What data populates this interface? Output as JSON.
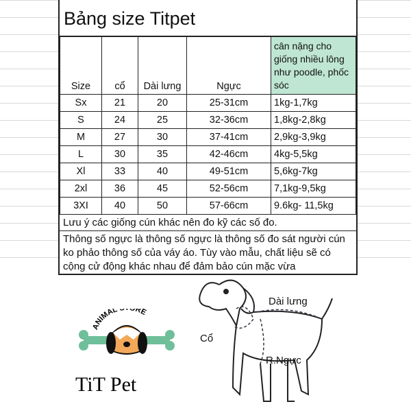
{
  "title": "Bảng size Titpet",
  "headers": [
    "Size",
    "cổ",
    "Dài lưng",
    "Ngực",
    "cân nặng cho giống nhiều lông như poodle, phốc sóc"
  ],
  "rows": [
    [
      "Sx",
      "21",
      "20",
      "25-31cm",
      "1kg-1,7kg"
    ],
    [
      "S",
      "24",
      "25",
      "32-36cm",
      "1,8kg-2,8kg"
    ],
    [
      "M",
      "27",
      "30",
      "37-41cm",
      "2,9kg-3,9kg"
    ],
    [
      "L",
      "30",
      "35",
      "42-46cm",
      "4kg-5,5kg"
    ],
    [
      "Xl",
      "33",
      "40",
      "49-51cm",
      "5,6kg-7kg"
    ],
    [
      "2xl",
      "36",
      "45",
      "52-56cm",
      "7,1kg-9,5kg"
    ],
    [
      "3XI",
      "40",
      "50",
      "57-66cm",
      "9.6kg- 11,5kg"
    ]
  ],
  "note": "Lưu ý các giống cún khác nên đo kỹ các số đo.",
  "paragraph": "Thông số ngực là thông số ngực là thông số đo sát người cún ko phảo thông số của váy áo. Tùy vào mẫu, chất liệu sẽ có cộng cử động khác nhau để đảm bảo cún mặc vừa",
  "logo": {
    "arc_text": "ANIMAL STORE",
    "wordmark": "TiT Pet"
  },
  "diagram": {
    "back_label": "Dài lưng",
    "neck_label": "Cổ",
    "chest_label": "R.Ngực"
  },
  "colors": {
    "header_green": "#bfe6d3",
    "bone": "#6fbf9a",
    "dog_face": "#f4a85a"
  }
}
